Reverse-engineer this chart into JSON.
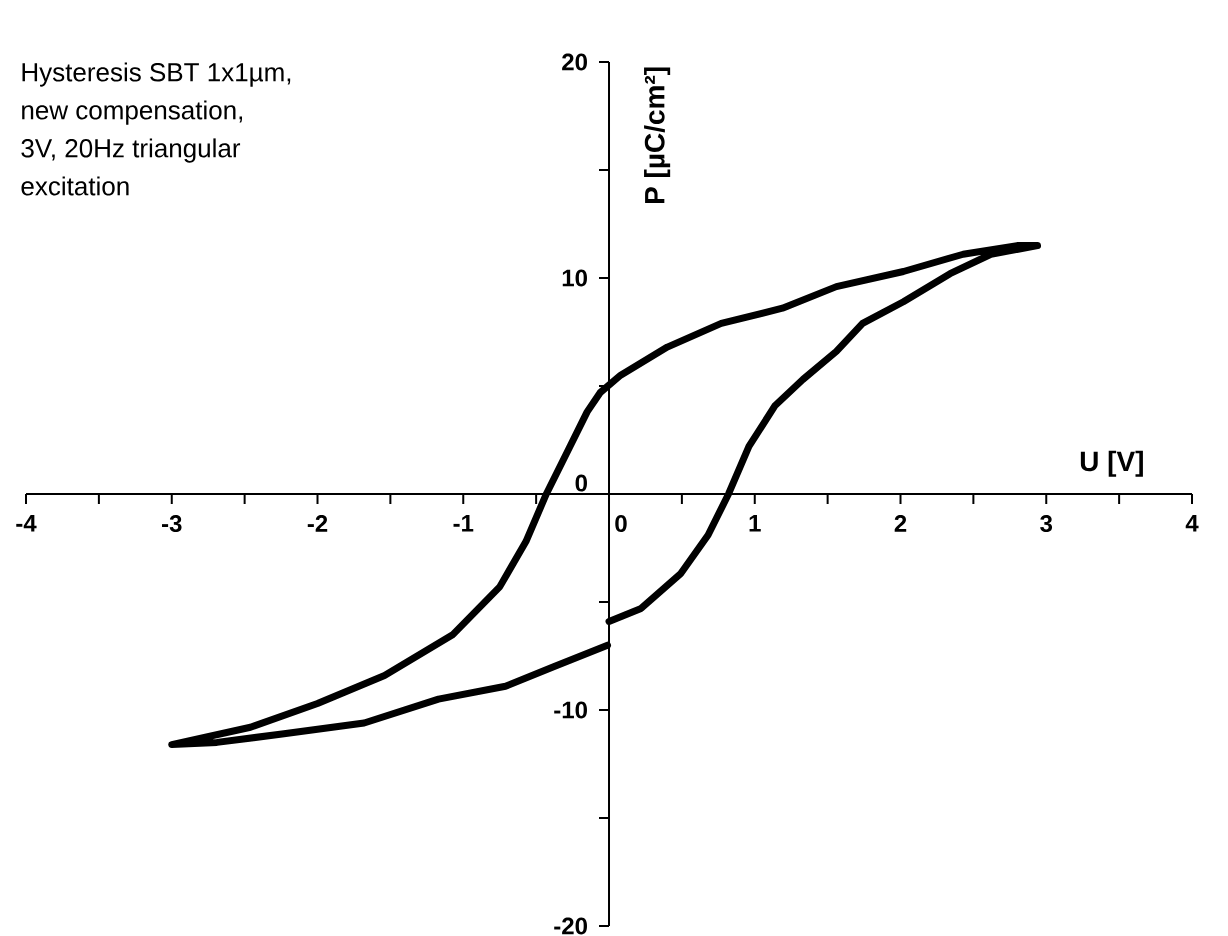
{
  "chart_data": {
    "type": "line",
    "xlabel": "U [V]",
    "ylabel": "P [µC/cm²]",
    "annotations": [
      "Hysteresis SBT 1x1µm,",
      "new compensation,",
      "3V, 20Hz triangular",
      "excitation"
    ],
    "xlim": [
      -4,
      4
    ],
    "ylim": [
      -20,
      20
    ],
    "xticks": [
      -4,
      {
        "value": -3.5,
        "label": null
      },
      -3,
      {
        "value": -2.5,
        "label": null
      },
      -2,
      {
        "value": -1.5,
        "label": null
      },
      -1,
      {
        "value": -0.5,
        "label": null
      },
      0,
      {
        "value": 0.5,
        "label": null
      },
      1,
      {
        "value": 1.5,
        "label": null
      },
      2,
      {
        "value": 2.5,
        "label": null
      },
      3,
      {
        "value": 3.5,
        "label": null
      },
      4
    ],
    "yticks": [
      -20,
      {
        "value": -15,
        "label": null
      },
      -10,
      {
        "value": -5,
        "label": null
      },
      0,
      {
        "value": 5,
        "label": null
      },
      10,
      {
        "value": 15,
        "label": null
      },
      20
    ],
    "grid": false,
    "marker": "none",
    "line_style": "solid",
    "series": [
      {
        "color": "#000000",
        "x": [
          0,
          0.22,
          0.49,
          0.68,
          0.82,
          0.96,
          1.14,
          1.33,
          1.56,
          1.74,
          2.02,
          2.34,
          2.62,
          2.94,
          2.8,
          2.43,
          2.02,
          1.56,
          1.19,
          0.77,
          0.4,
          0.08,
          -0.06,
          -0.15,
          -0.29,
          -0.43,
          -0.57,
          -0.75,
          -1.07,
          -1.54,
          -2.0,
          -2.46,
          -3.0,
          -2.69,
          -2.23,
          -1.68,
          -1.17,
          -0.71,
          -0.38,
          -0.01
        ],
        "values": [
          -5.9,
          -5.3,
          -3.7,
          -1.9,
          0,
          2.2,
          4.1,
          5.3,
          6.6,
          7.9,
          8.9,
          10.2,
          11.1,
          11.5,
          11.5,
          11.1,
          10.3,
          9.6,
          8.6,
          7.9,
          6.8,
          5.5,
          4.7,
          3.8,
          1.9,
          0,
          -2.2,
          -4.3,
          -6.5,
          -8.4,
          -9.7,
          -10.8,
          -11.6,
          -11.5,
          -11.1,
          -10.6,
          -9.5,
          -8.9,
          -8.0,
          -7.0
        ]
      }
    ]
  }
}
